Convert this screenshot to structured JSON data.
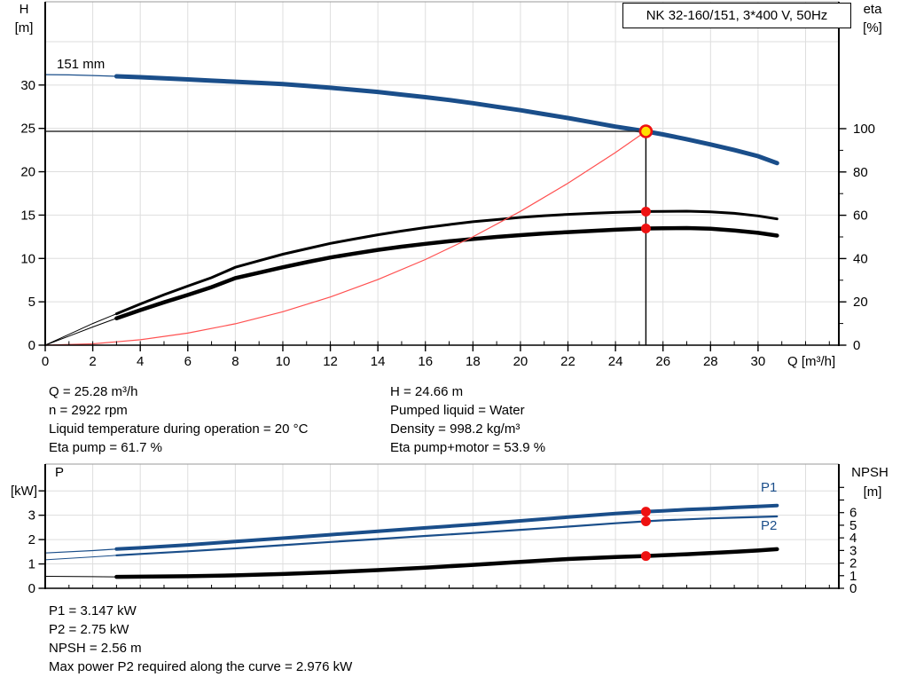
{
  "title_box": {
    "label": "NK 32-160/151, 3*400 V, 50Hz"
  },
  "info_top": {
    "left": [
      "Q = 25.28 m³/h",
      "n = 2922 rpm",
      "Liquid temperature during operation = 20 °C",
      "Eta pump = 61.7 %"
    ],
    "right": [
      "H = 24.66 m",
      "Pumped liquid = Water",
      "Density = 998.2 kg/m³",
      "Eta pump+motor = 53.9 %"
    ]
  },
  "info_bottom": [
    "P1 = 3.147 kW",
    "P2 = 2.75 kW",
    "NPSH = 2.56 m",
    "Max power P2 required along the curve = 2.976 kW"
  ],
  "colors": {
    "curve_blue": "#1a4e8a",
    "curve_black": "#000000",
    "system_red": "#ff5050",
    "marker_red": "#ee1111",
    "marker_yellow": "#ffdf00",
    "grid": "#dedede",
    "duty_line": "#333333"
  },
  "chart_data": [
    {
      "type": "line",
      "title": "NK 32-160/151, 3*400 V, 50Hz",
      "impeller_label": "151 mm",
      "x_axis": {
        "label": "Q [m³/h]",
        "range": [
          0,
          33.4
        ],
        "ticks": [
          0,
          2,
          4,
          6,
          8,
          10,
          12,
          14,
          16,
          18,
          20,
          22,
          24,
          26,
          28,
          30
        ],
        "minor_step": 1
      },
      "y_left": {
        "label_line1": "H",
        "label_line2": "[m]",
        "range": [
          0,
          39.6
        ],
        "ticks": [
          0,
          5,
          10,
          15,
          20,
          25,
          30
        ]
      },
      "y_right": {
        "label_line1": "eta",
        "label_line2": "[%]",
        "range": [
          0,
          158.6
        ],
        "ticks": [
          0,
          20,
          40,
          60,
          80,
          100
        ],
        "minor_step": 10
      },
      "grid": true,
      "series": [
        {
          "name": "151 mm",
          "role": "head-curve",
          "axis": "left",
          "color": "#1a4e8a",
          "points": [
            [
              0,
              31.2
            ],
            [
              1,
              31.17
            ],
            [
              2,
              31.1
            ],
            [
              3,
              31.0
            ],
            [
              4,
              30.9
            ],
            [
              5,
              30.78
            ],
            [
              6,
              30.65
            ],
            [
              7,
              30.5
            ],
            [
              8,
              30.38
            ],
            [
              9,
              30.25
            ],
            [
              10,
              30.1
            ],
            [
              11,
              29.9
            ],
            [
              12,
              29.68
            ],
            [
              13,
              29.45
            ],
            [
              14,
              29.2
            ],
            [
              15,
              28.9
            ],
            [
              16,
              28.6
            ],
            [
              17,
              28.27
            ],
            [
              18,
              27.9
            ],
            [
              19,
              27.5
            ],
            [
              20,
              27.1
            ],
            [
              21,
              26.65
            ],
            [
              22,
              26.2
            ],
            [
              23,
              25.7
            ],
            [
              24,
              25.2
            ],
            [
              25.28,
              24.66
            ],
            [
              26,
              24.3
            ],
            [
              27,
              23.75
            ],
            [
              28,
              23.15
            ],
            [
              29,
              22.5
            ],
            [
              30,
              21.8
            ],
            [
              30.8,
              21.0
            ]
          ]
        },
        {
          "name": "Eta pump",
          "role": "eta-pump-curve",
          "axis": "right",
          "color": "#000000",
          "points": [
            [
              0,
              0
            ],
            [
              1,
              5
            ],
            [
              2,
              10
            ],
            [
              3,
              14.5
            ],
            [
              4,
              19
            ],
            [
              5,
              23.3
            ],
            [
              6,
              27.3
            ],
            [
              7,
              31.2
            ],
            [
              8,
              36
            ],
            [
              9,
              39
            ],
            [
              10,
              42
            ],
            [
              11,
              44.5
            ],
            [
              12,
              47
            ],
            [
              13,
              49
            ],
            [
              14,
              51
            ],
            [
              15,
              52.7
            ],
            [
              16,
              54.3
            ],
            [
              17,
              55.7
            ],
            [
              18,
              57
            ],
            [
              19,
              58
            ],
            [
              20,
              59
            ],
            [
              21,
              59.8
            ],
            [
              22,
              60.4
            ],
            [
              23,
              60.9
            ],
            [
              24,
              61.3
            ],
            [
              25.28,
              61.7
            ],
            [
              26,
              61.8
            ],
            [
              27,
              61.9
            ],
            [
              28,
              61.6
            ],
            [
              29,
              60.9
            ],
            [
              30,
              59.7
            ],
            [
              30.8,
              58.3
            ]
          ]
        },
        {
          "name": "Eta pump+motor",
          "role": "eta-pump-motor-curve",
          "axis": "right",
          "color": "#000000",
          "points": [
            [
              0,
              0
            ],
            [
              1,
              4.2
            ],
            [
              2,
              8.4
            ],
            [
              3,
              12.4
            ],
            [
              4,
              16.2
            ],
            [
              5,
              19.8
            ],
            [
              6,
              23.2
            ],
            [
              7,
              26.8
            ],
            [
              8,
              31
            ],
            [
              9,
              33.5
            ],
            [
              10,
              36
            ],
            [
              11,
              38.3
            ],
            [
              12,
              40.5
            ],
            [
              13,
              42.3
            ],
            [
              14,
              44
            ],
            [
              15,
              45.5
            ],
            [
              16,
              46.8
            ],
            [
              17,
              48
            ],
            [
              18,
              49
            ],
            [
              19,
              50
            ],
            [
              20,
              50.8
            ],
            [
              21,
              51.6
            ],
            [
              22,
              52.2
            ],
            [
              23,
              52.8
            ],
            [
              24,
              53.3
            ],
            [
              25.28,
              53.9
            ],
            [
              26,
              54.0
            ],
            [
              27,
              54.1
            ],
            [
              28,
              53.8
            ],
            [
              29,
              53.0
            ],
            [
              30,
              51.9
            ],
            [
              30.8,
              50.6
            ]
          ]
        },
        {
          "name": "System curve",
          "role": "system-curve",
          "axis": "left",
          "color": "#ff5050",
          "points": [
            [
              0,
              0
            ],
            [
              2,
              0.15
            ],
            [
              4,
              0.62
            ],
            [
              6,
              1.39
            ],
            [
              8,
              2.47
            ],
            [
              10,
              3.86
            ],
            [
              12,
              5.56
            ],
            [
              14,
              7.56
            ],
            [
              16,
              9.87
            ],
            [
              18,
              12.49
            ],
            [
              20,
              15.43
            ],
            [
              22,
              18.67
            ],
            [
              24,
              22.22
            ],
            [
              25.28,
              24.66
            ]
          ]
        }
      ],
      "duty_point": {
        "Q": 25.28,
        "H": 24.66,
        "eta_pump": 61.7,
        "eta_pump_motor": 53.9
      }
    },
    {
      "type": "line",
      "x_axis": {
        "label": "",
        "range": [
          0,
          33.4
        ],
        "minor_step": 1
      },
      "y_left": {
        "label_line1": "P",
        "label_line2": "[kW]",
        "range": [
          0,
          5.1
        ],
        "ticks": [
          0,
          1,
          2,
          3
        ],
        "tick_marks": [
          0,
          1,
          2,
          3,
          4
        ]
      },
      "y_right": {
        "label_line1": "NPSH",
        "label_line2": "[m]",
        "range": [
          0,
          9.85
        ],
        "ticks": [
          0,
          1,
          2,
          3,
          4,
          5,
          6
        ],
        "tick_marks": [
          0,
          1,
          2,
          3,
          4,
          5,
          6,
          7,
          8
        ]
      },
      "grid": true,
      "series": [
        {
          "name": "P1",
          "role": "p1-curve",
          "axis": "left",
          "color": "#1a4e8a",
          "points": [
            [
              0,
              1.45
            ],
            [
              2,
              1.55
            ],
            [
              3,
              1.61
            ],
            [
              4,
              1.66
            ],
            [
              6,
              1.78
            ],
            [
              8,
              1.92
            ],
            [
              10,
              2.06
            ],
            [
              12,
              2.2
            ],
            [
              14,
              2.34
            ],
            [
              16,
              2.48
            ],
            [
              18,
              2.62
            ],
            [
              20,
              2.77
            ],
            [
              22,
              2.92
            ],
            [
              24,
              3.07
            ],
            [
              25.28,
              3.147
            ],
            [
              26,
              3.18
            ],
            [
              27,
              3.23
            ],
            [
              28,
              3.27
            ],
            [
              29,
              3.32
            ],
            [
              30,
              3.36
            ],
            [
              30.8,
              3.4
            ]
          ]
        },
        {
          "name": "P2",
          "role": "p2-curve",
          "axis": "left",
          "color": "#1a4e8a",
          "points": [
            [
              0,
              1.17
            ],
            [
              2,
              1.29
            ],
            [
              3,
              1.35
            ],
            [
              4,
              1.41
            ],
            [
              6,
              1.52
            ],
            [
              8,
              1.64
            ],
            [
              10,
              1.77
            ],
            [
              12,
              1.9
            ],
            [
              14,
              2.02
            ],
            [
              16,
              2.15
            ],
            [
              18,
              2.27
            ],
            [
              20,
              2.4
            ],
            [
              22,
              2.53
            ],
            [
              24,
              2.67
            ],
            [
              25.28,
              2.75
            ],
            [
              26,
              2.79
            ],
            [
              27,
              2.83
            ],
            [
              28,
              2.87
            ],
            [
              29,
              2.9
            ],
            [
              30,
              2.93
            ],
            [
              30.8,
              2.95
            ]
          ]
        },
        {
          "name": "NPSH",
          "role": "npsh-curve",
          "axis": "right",
          "color": "#000000",
          "points": [
            [
              0,
              0.95
            ],
            [
              2,
              0.92
            ],
            [
              3,
              0.91
            ],
            [
              4,
              0.92
            ],
            [
              6,
              0.96
            ],
            [
              8,
              1.03
            ],
            [
              10,
              1.13
            ],
            [
              12,
              1.27
            ],
            [
              14,
              1.44
            ],
            [
              16,
              1.64
            ],
            [
              18,
              1.86
            ],
            [
              20,
              2.1
            ],
            [
              22,
              2.32
            ],
            [
              24,
              2.48
            ],
            [
              25.28,
              2.56
            ],
            [
              26,
              2.62
            ],
            [
              27,
              2.7
            ],
            [
              28,
              2.79
            ],
            [
              29,
              2.89
            ],
            [
              30,
              3.0
            ],
            [
              30.8,
              3.1
            ]
          ]
        }
      ],
      "duty_point": {
        "Q": 25.28,
        "P1": 3.147,
        "P2": 2.75,
        "NPSH": 2.56
      }
    }
  ]
}
